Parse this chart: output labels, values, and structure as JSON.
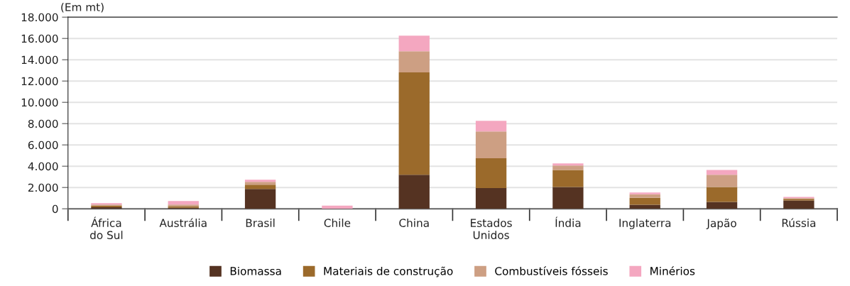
{
  "chart_data": {
    "type": "bar",
    "stacked": true,
    "ylabel": "(Em mt)",
    "categories": [
      "África\ndo Sul",
      "Austrália",
      "Brasil",
      "Chile",
      "China",
      "Estados\nUnidos",
      "Índia",
      "Inglaterra",
      "Japão",
      "Rússia"
    ],
    "series": [
      {
        "name": "Biomassa",
        "color": "#553322",
        "values": [
          150,
          100,
          1870,
          0,
          3200,
          1950,
          2050,
          380,
          650,
          780
        ]
      },
      {
        "name": "Materiais de construção",
        "color": "#9b6a2b",
        "values": [
          150,
          150,
          400,
          0,
          9620,
          2800,
          1600,
          650,
          1400,
          150
        ]
      },
      {
        "name": "Combustíveis fósseis",
        "color": "#cd9f83",
        "values": [
          100,
          150,
          260,
          0,
          1980,
          2520,
          420,
          340,
          1150,
          70
        ]
      },
      {
        "name": "Minérios",
        "color": "#f4a7c0",
        "values": [
          130,
          330,
          200,
          300,
          1470,
          1000,
          200,
          160,
          450,
          120
        ]
      }
    ],
    "ylim": [
      0,
      18000
    ],
    "yticks": [
      {
        "value": 0,
        "label": "0"
      },
      {
        "value": 2000,
        "label": "2.000"
      },
      {
        "value": 4000,
        "label": "4.000"
      },
      {
        "value": 6000,
        "label": "6.000"
      },
      {
        "value": 8000,
        "label": "8.000"
      },
      {
        "value": 10000,
        "label": "10.000"
      },
      {
        "value": 12000,
        "label": "12.000"
      },
      {
        "value": 14000,
        "label": "14.000"
      },
      {
        "value": 16000,
        "label": "16.000"
      },
      {
        "value": 18000,
        "label": "18.000"
      }
    ],
    "grid": "y",
    "legend": "bottom"
  }
}
